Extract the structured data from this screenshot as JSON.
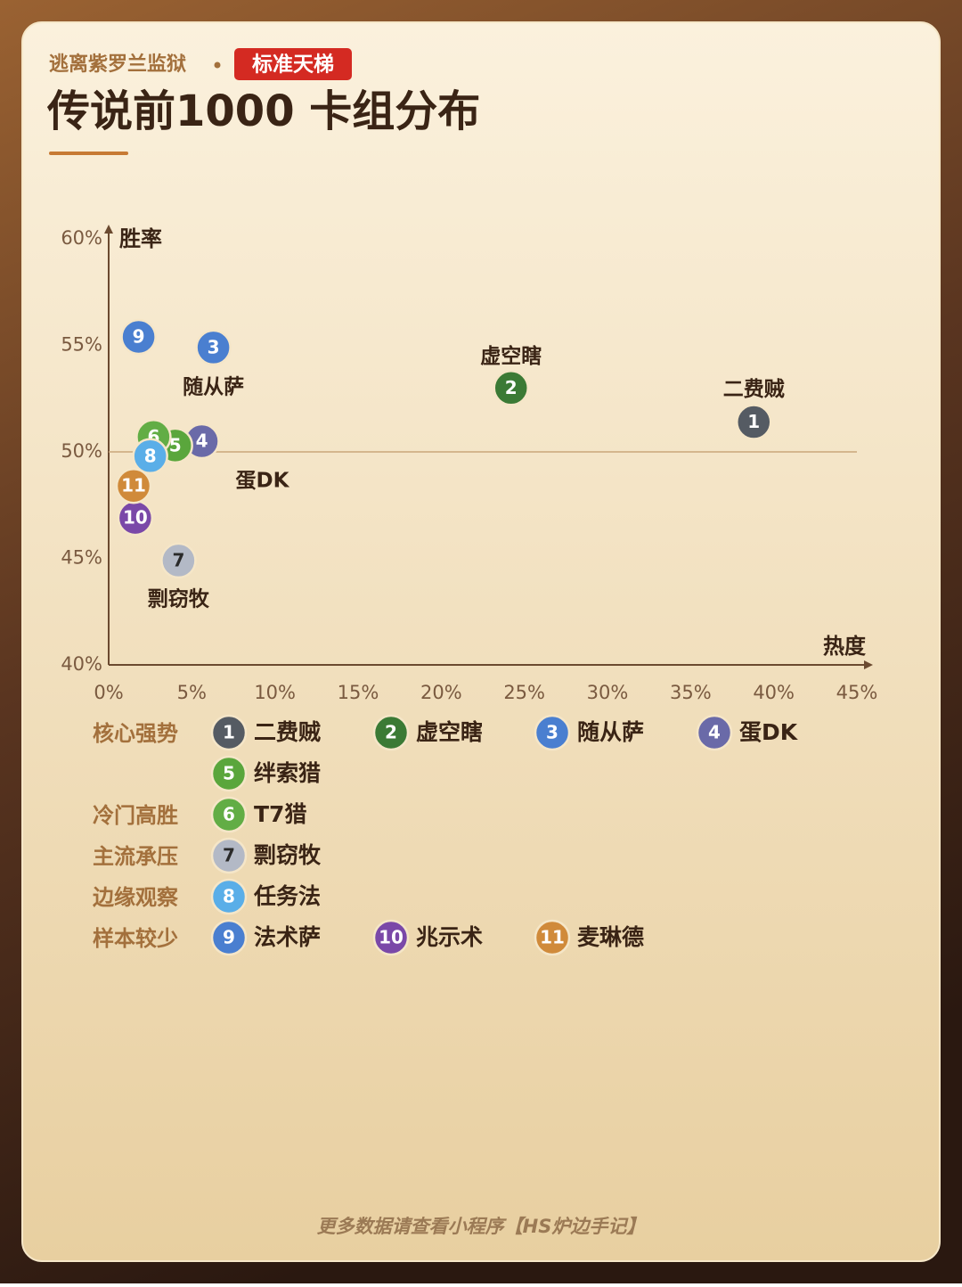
{
  "header": {
    "source": "逃离紫罗兰监狱",
    "badge": "标准天梯",
    "title": "传说前1000 卡组分布"
  },
  "chart_data": {
    "type": "scatter",
    "x_label": "热度",
    "y_label": "胜率",
    "xlim": [
      0,
      45
    ],
    "ylim": [
      40,
      60
    ],
    "xticks": [
      {
        "value": 0,
        "label": "0%"
      },
      {
        "value": 5,
        "label": "5%"
      },
      {
        "value": 10,
        "label": "10%"
      },
      {
        "value": 15,
        "label": "15%"
      },
      {
        "value": 20,
        "label": "20%"
      },
      {
        "value": 25,
        "label": "25%"
      },
      {
        "value": 30,
        "label": "30%"
      },
      {
        "value": 35,
        "label": "35%"
      },
      {
        "value": 40,
        "label": "40%"
      },
      {
        "value": 45,
        "label": "45%"
      }
    ],
    "yticks": [
      {
        "value": 40,
        "label": "40%"
      },
      {
        "value": 45,
        "label": "45%"
      },
      {
        "value": 50,
        "label": "50%"
      },
      {
        "value": 55,
        "label": "55%"
      },
      {
        "value": 60,
        "label": "60%"
      }
    ],
    "ref_line": 50,
    "series": [
      {
        "id": 1,
        "name": "二费贼",
        "group": "核心强势",
        "color": "#555b63",
        "text_color": "#ffffff",
        "x": 38.8,
        "y": 51.4
      },
      {
        "id": 2,
        "name": "虚空瞎",
        "group": "核心强势",
        "color": "#3b7a35",
        "text_color": "#ffffff",
        "x": 24.2,
        "y": 53.0
      },
      {
        "id": 3,
        "name": "随从萨",
        "group": "核心强势",
        "color": "#4a7fd0",
        "text_color": "#ffffff",
        "x": 6.3,
        "y": 54.9
      },
      {
        "id": 4,
        "name": "蛋DK",
        "group": "核心强势",
        "color": "#6a6aa8",
        "text_color": "#ffffff",
        "x": 5.6,
        "y": 50.5
      },
      {
        "id": 5,
        "name": "绊索猎",
        "group": "核心强势",
        "color": "#5aa63c",
        "text_color": "#ffffff",
        "x": 4.0,
        "y": 50.3
      },
      {
        "id": 6,
        "name": "T7猎",
        "group": "冷门高胜",
        "color": "#62ad45",
        "text_color": "#ffffff",
        "x": 2.7,
        "y": 50.7
      },
      {
        "id": 7,
        "name": "剽窃牧",
        "group": "主流承压",
        "color": "#b3b9c6",
        "text_color": "#2a2a2a",
        "x": 4.2,
        "y": 44.9
      },
      {
        "id": 8,
        "name": "任务法",
        "group": "边缘观察",
        "color": "#5aaee8",
        "text_color": "#ffffff",
        "x": 2.5,
        "y": 49.8
      },
      {
        "id": 9,
        "name": "法术萨",
        "group": "样本较少",
        "color": "#4a7fd0",
        "text_color": "#ffffff",
        "x": 1.8,
        "y": 55.4
      },
      {
        "id": 10,
        "name": "兆示术",
        "group": "样本较少",
        "color": "#7a48a8",
        "text_color": "#ffffff",
        "x": 1.6,
        "y": 46.9
      },
      {
        "id": 11,
        "name": "麦琳德",
        "group": "样本较少",
        "color": "#d08a3a",
        "text_color": "#ffffff",
        "x": 1.5,
        "y": 48.4
      }
    ]
  },
  "footer": "更多数据请查看小程序【HS炉边手记】"
}
